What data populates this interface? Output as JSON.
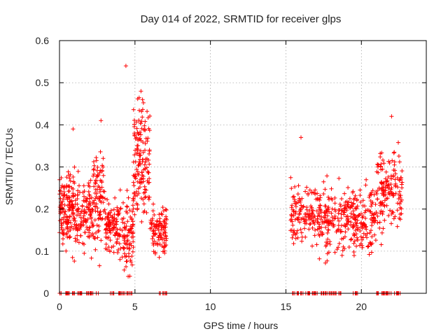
{
  "chart_data": {
    "type": "scatter",
    "title": "Day 014 of 2022, SRMTID for receiver glps",
    "xlabel": "GPS time / hours",
    "ylabel": "SRMTID / TECUs",
    "xlim": [
      0,
      24.3
    ],
    "ylim": [
      0,
      0.6
    ],
    "xticks": [
      0,
      5,
      10,
      15,
      20
    ],
    "xtick_labels": [
      "0",
      "5",
      "10",
      "15",
      "20"
    ],
    "yticks": [
      0,
      0.1,
      0.2,
      0.3,
      0.4,
      0.5,
      0.6
    ],
    "ytick_labels": [
      "0",
      "0.1",
      "0.2",
      "0.3",
      "0.4",
      "0.5",
      "0.6"
    ],
    "grid": true,
    "marker": "+",
    "color": "#ff0000",
    "series": [
      {
        "name": "SRMTID",
        "clusters": [
          {
            "x_range": [
              0.0,
              1.0
            ],
            "y_mean": 0.2,
            "y_spread": 0.09,
            "n": 140
          },
          {
            "x_range": [
              1.0,
              2.2
            ],
            "y_mean": 0.19,
            "y_spread": 0.08,
            "n": 120
          },
          {
            "x_range": [
              2.2,
              3.0
            ],
            "y_mean": 0.22,
            "y_spread": 0.1,
            "n": 90
          },
          {
            "x_range": [
              3.0,
              4.0
            ],
            "y_mean": 0.16,
            "y_spread": 0.06,
            "n": 100
          },
          {
            "x_range": [
              4.0,
              4.9
            ],
            "y_mean": 0.14,
            "y_spread": 0.08,
            "n": 90
          },
          {
            "x_range": [
              4.9,
              6.0
            ],
            "y_mean": 0.32,
            "y_spread": 0.12,
            "n": 150
          },
          {
            "x_range": [
              6.0,
              7.1
            ],
            "y_mean": 0.15,
            "y_spread": 0.06,
            "n": 100
          },
          {
            "x_range": [
              15.3,
              17.2
            ],
            "y_mean": 0.19,
            "y_spread": 0.07,
            "n": 140
          },
          {
            "x_range": [
              17.2,
              19.0
            ],
            "y_mean": 0.17,
            "y_spread": 0.07,
            "n": 140
          },
          {
            "x_range": [
              19.0,
              21.0
            ],
            "y_mean": 0.18,
            "y_spread": 0.07,
            "n": 170
          },
          {
            "x_range": [
              21.0,
              22.7
            ],
            "y_mean": 0.24,
            "y_spread": 0.09,
            "n": 150
          }
        ],
        "peaks": [
          {
            "x": 4.4,
            "y": 0.54
          },
          {
            "x": 5.4,
            "y": 0.48
          },
          {
            "x": 5.5,
            "y": 0.46
          },
          {
            "x": 0.9,
            "y": 0.39
          },
          {
            "x": 2.75,
            "y": 0.41
          },
          {
            "x": 22.0,
            "y": 0.42
          },
          {
            "x": 16.0,
            "y": 0.37
          },
          {
            "x": 4.55,
            "y": 0.04
          }
        ],
        "zero_values": {
          "x_ranges": [
            [
              0.0,
              1.0
            ],
            [
              1.2,
              2.6
            ],
            [
              3.3,
              4.9
            ],
            [
              6.6,
              7.1
            ],
            [
              15.3,
              18.7
            ],
            [
              19.4,
              19.8
            ],
            [
              20.9,
              22.6
            ]
          ],
          "y": 0
        }
      }
    ]
  }
}
